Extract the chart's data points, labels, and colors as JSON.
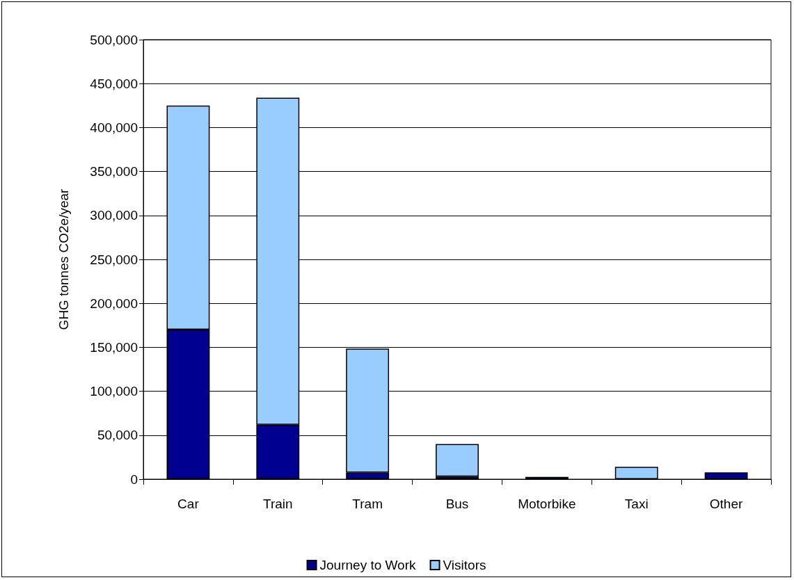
{
  "chart_data": {
    "type": "bar",
    "stacked": true,
    "ylabel": "GHG tonnes CO2e/year",
    "categories": [
      "Car",
      "Train",
      "Tram",
      "Bus",
      "Motorbike",
      "Taxi",
      "Other"
    ],
    "series": [
      {
        "name": "Journey to Work",
        "color": "#000090",
        "values": [
          170000,
          62000,
          7500,
          3000,
          2500,
          0,
          7800
        ]
      },
      {
        "name": "Visitors",
        "color": "#99ccff",
        "values": [
          255000,
          372000,
          141000,
          37000,
          0,
          14000,
          0
        ]
      }
    ],
    "ylim": [
      0,
      500000
    ],
    "yticks": [
      {
        "value": 0,
        "label": "0"
      },
      {
        "value": 50000,
        "label": "50,000"
      },
      {
        "value": 100000,
        "label": "100,000"
      },
      {
        "value": 150000,
        "label": "150,000"
      },
      {
        "value": 200000,
        "label": "200,000"
      },
      {
        "value": 250000,
        "label": "250,000"
      },
      {
        "value": 300000,
        "label": "300,000"
      },
      {
        "value": 350000,
        "label": "350,000"
      },
      {
        "value": 400000,
        "label": "400,000"
      },
      {
        "value": 450000,
        "label": "450,000"
      },
      {
        "value": 500000,
        "label": "500,000"
      }
    ],
    "grid": "y",
    "legend": "bottom"
  }
}
